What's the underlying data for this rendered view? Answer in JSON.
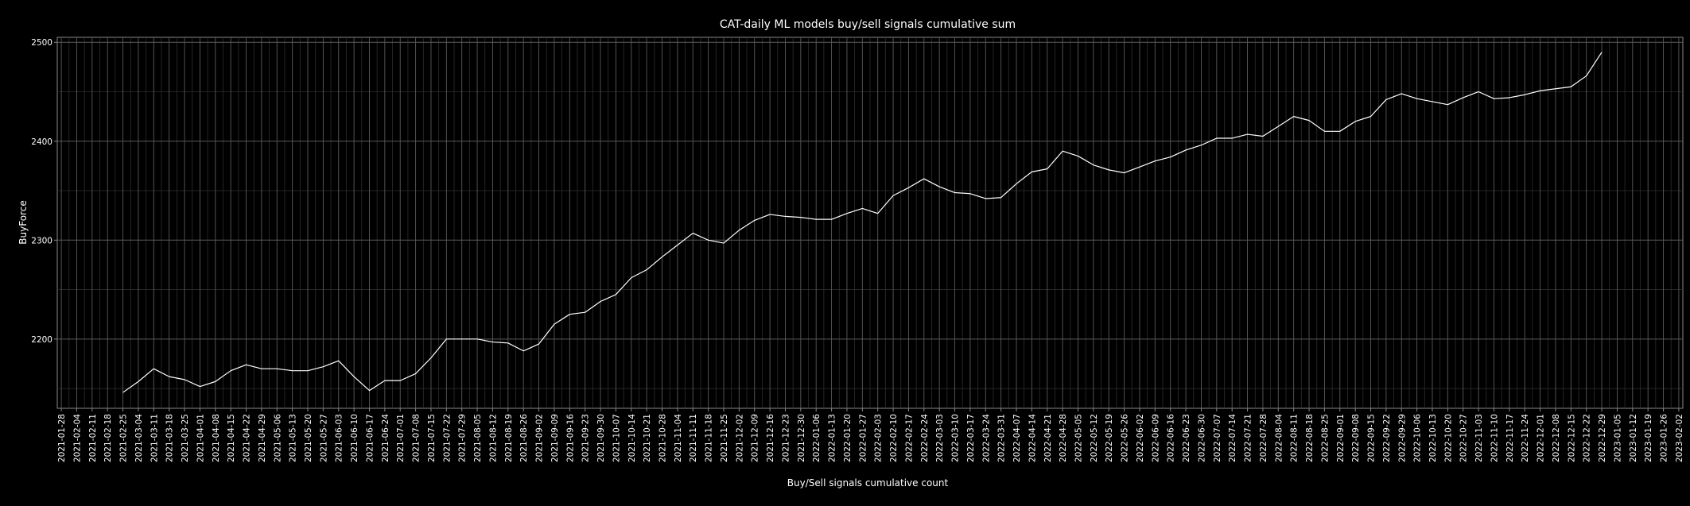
{
  "chart_data": {
    "type": "line",
    "title": "CAT-daily ML models buy/sell signals cumulative sum",
    "xlabel": "Buy/Sell signals cumulative count",
    "ylabel": "BuyForce",
    "x_tick_labels": [
      "2021-01-28",
      "2021-02-04",
      "2021-02-11",
      "2021-02-18",
      "2021-02-25",
      "2021-03-04",
      "2021-03-11",
      "2021-03-18",
      "2021-03-25",
      "2021-04-01",
      "2021-04-08",
      "2021-04-15",
      "2021-04-22",
      "2021-04-29",
      "2021-05-06",
      "2021-05-13",
      "2021-05-20",
      "2021-05-27",
      "2021-06-03",
      "2021-06-10",
      "2021-06-17",
      "2021-06-24",
      "2021-07-01",
      "2021-07-08",
      "2021-07-15",
      "2021-07-22",
      "2021-07-29",
      "2021-08-05",
      "2021-08-12",
      "2021-08-19",
      "2021-08-26",
      "2021-09-02",
      "2021-09-09",
      "2021-09-16",
      "2021-09-23",
      "2021-09-30",
      "2021-10-07",
      "2021-10-14",
      "2021-10-21",
      "2021-10-28",
      "2021-11-04",
      "2021-11-11",
      "2021-11-18",
      "2021-11-25",
      "2021-12-02",
      "2021-12-09",
      "2021-12-16",
      "2021-12-23",
      "2021-12-30",
      "2022-01-06",
      "2022-01-13",
      "2022-01-20",
      "2022-01-27",
      "2022-02-03",
      "2022-02-10",
      "2022-02-17",
      "2022-02-24",
      "2022-03-03",
      "2022-03-10",
      "2022-03-17",
      "2022-03-24",
      "2022-03-31",
      "2022-04-07",
      "2022-04-14",
      "2022-04-21",
      "2022-04-28",
      "2022-05-05",
      "2022-05-12",
      "2022-05-19",
      "2022-05-26",
      "2022-06-02",
      "2022-06-09",
      "2022-06-16",
      "2022-06-23",
      "2022-06-30",
      "2022-07-07",
      "2022-07-14",
      "2022-07-21",
      "2022-07-28",
      "2022-08-04",
      "2022-08-11",
      "2022-08-18",
      "2022-08-25",
      "2022-09-01",
      "2022-09-08",
      "2022-09-15",
      "2022-09-22",
      "2022-09-29",
      "2022-10-06",
      "2022-10-13",
      "2022-10-20",
      "2022-10-27",
      "2022-11-03",
      "2022-11-10",
      "2022-11-17",
      "2022-11-24",
      "2022-12-01",
      "2022-12-08",
      "2022-12-15",
      "2022-12-22",
      "2022-12-29",
      "2023-01-05",
      "2023-01-12",
      "2023-01-19",
      "2023-01-26",
      "2023-02-02"
    ],
    "y_ticks": [
      2200,
      2300,
      2400,
      2500
    ],
    "ylim": [
      2130,
      2505
    ],
    "xlim": [
      "2021-01-28",
      "2023-02-02"
    ],
    "grid": true,
    "legend": "none",
    "line_color": "#ffffff",
    "background_color": "#000000",
    "series": [
      {
        "x": [
          "2021-02-25",
          "2021-03-04",
          "2021-03-11",
          "2021-03-18",
          "2021-03-25",
          "2021-04-01",
          "2021-04-08",
          "2021-04-15",
          "2021-04-22",
          "2021-04-29",
          "2021-05-06",
          "2021-05-13",
          "2021-05-20",
          "2021-05-27",
          "2021-06-03",
          "2021-06-10",
          "2021-06-17",
          "2021-06-24",
          "2021-07-01",
          "2021-07-08",
          "2021-07-15",
          "2021-07-22",
          "2021-07-29",
          "2021-08-05",
          "2021-08-12",
          "2021-08-19",
          "2021-08-26",
          "2021-09-02",
          "2021-09-09",
          "2021-09-16",
          "2021-09-23",
          "2021-09-30",
          "2021-10-07",
          "2021-10-14",
          "2021-10-21",
          "2021-10-28",
          "2021-11-04",
          "2021-11-11",
          "2021-11-18",
          "2021-11-25",
          "2021-12-02",
          "2021-12-09",
          "2021-12-16",
          "2021-12-23",
          "2021-12-30",
          "2022-01-06",
          "2022-01-13",
          "2022-01-20",
          "2022-01-27",
          "2022-02-03",
          "2022-02-10",
          "2022-02-17",
          "2022-02-24",
          "2022-03-03",
          "2022-03-10",
          "2022-03-17",
          "2022-03-24",
          "2022-03-31",
          "2022-04-07",
          "2022-04-14",
          "2022-04-21",
          "2022-04-28",
          "2022-05-05",
          "2022-05-12",
          "2022-05-19",
          "2022-05-26",
          "2022-06-02",
          "2022-06-09",
          "2022-06-16",
          "2022-06-23",
          "2022-06-30",
          "2022-07-07",
          "2022-07-14",
          "2022-07-21",
          "2022-07-28",
          "2022-08-04",
          "2022-08-11",
          "2022-08-18",
          "2022-08-25",
          "2022-09-01",
          "2022-09-08",
          "2022-09-15",
          "2022-09-22",
          "2022-09-29",
          "2022-10-06",
          "2022-10-13",
          "2022-10-20",
          "2022-10-27",
          "2022-11-03",
          "2022-11-10",
          "2022-11-17",
          "2022-11-24",
          "2022-12-01",
          "2022-12-08",
          "2022-12-15",
          "2022-12-22",
          "2022-12-29"
        ],
        "y": [
          2146,
          2157,
          2170,
          2162,
          2159,
          2152,
          2157,
          2168,
          2174,
          2170,
          2170,
          2168,
          2168,
          2172,
          2178,
          2162,
          2148,
          2158,
          2158,
          2165,
          2181,
          2200,
          2200,
          2200,
          2197,
          2196,
          2188,
          2195,
          2215,
          2225,
          2227,
          2238,
          2245,
          2262,
          2270,
          2283,
          2295,
          2307,
          2300,
          2297,
          2310,
          2320,
          2326,
          2324,
          2323,
          2321,
          2321,
          2327,
          2332,
          2327,
          2345,
          2353,
          2362,
          2354,
          2348,
          2347,
          2342,
          2343,
          2357,
          2369,
          2372,
          2390,
          2385,
          2376,
          2371,
          2368,
          2374,
          2380,
          2384,
          2391,
          2396,
          2403,
          2403,
          2407,
          2405,
          2415,
          2425,
          2421,
          2410,
          2410,
          2420,
          2425,
          2442,
          2448,
          2443,
          2440,
          2437,
          2444,
          2450,
          2443,
          2444,
          2447,
          2451,
          2453,
          2455,
          2466,
          2490
        ]
      }
    ]
  }
}
